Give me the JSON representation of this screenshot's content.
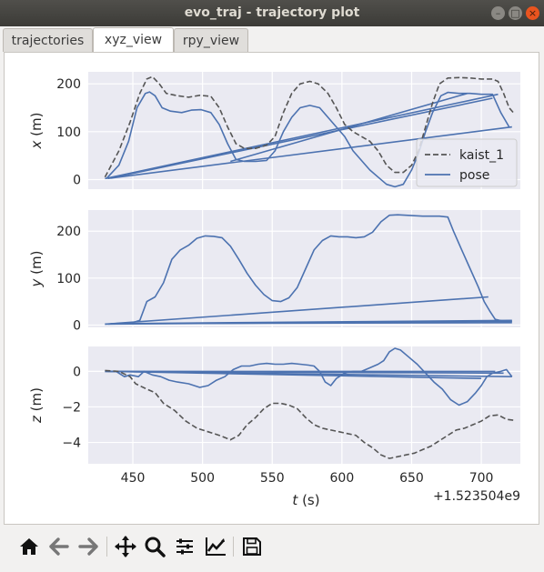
{
  "window": {
    "title": "evo_traj - trajectory plot"
  },
  "tabs": [
    {
      "label": "trajectories",
      "active": false
    },
    {
      "label": "xyz_view",
      "active": true
    },
    {
      "label": "rpy_view",
      "active": false
    }
  ],
  "toolbar": [
    "home-icon",
    "back-arrow-icon",
    "forward-arrow-icon",
    "pan-icon",
    "zoom-icon",
    "configure-subplots-icon",
    "edit-axis-icon",
    "save-icon"
  ],
  "colors": {
    "reference": "#555555",
    "pose": "#4c72b0",
    "axes_bg": "#eaeaf2",
    "grid": "#ffffff"
  },
  "chart_data": {
    "type": "line",
    "x_offset_label": "+1.523504e9",
    "xlabel": "t (s)",
    "xlim": [
      418,
      728
    ],
    "xticks": [
      450,
      500,
      550,
      600,
      650,
      700
    ],
    "legend": {
      "position": "right",
      "entries": [
        "kaist_1",
        "pose"
      ]
    },
    "series": [
      {
        "name": "kaist_1",
        "style": "dashed",
        "color": "#555555"
      },
      {
        "name": "pose",
        "style": "solid",
        "color": "#4c72b0"
      }
    ],
    "subplots": [
      {
        "ylabel": "x (m)",
        "ylim": [
          -20,
          225
        ],
        "yticks": [
          0,
          100,
          200
        ],
        "kaist_1": [
          [
            430,
            5
          ],
          [
            440,
            60
          ],
          [
            448,
            120
          ],
          [
            455,
            180
          ],
          [
            460,
            210
          ],
          [
            464,
            215
          ],
          [
            469,
            200
          ],
          [
            474,
            180
          ],
          [
            482,
            175
          ],
          [
            490,
            172
          ],
          [
            498,
            176
          ],
          [
            506,
            174
          ],
          [
            512,
            150
          ],
          [
            518,
            110
          ],
          [
            524,
            75
          ],
          [
            530,
            65
          ],
          [
            538,
            65
          ],
          [
            546,
            72
          ],
          [
            552,
            90
          ],
          [
            558,
            140
          ],
          [
            564,
            180
          ],
          [
            570,
            200
          ],
          [
            577,
            205
          ],
          [
            583,
            200
          ],
          [
            590,
            180
          ],
          [
            596,
            150
          ],
          [
            602,
            115
          ],
          [
            608,
            100
          ],
          [
            614,
            90
          ],
          [
            620,
            80
          ],
          [
            626,
            60
          ],
          [
            632,
            30
          ],
          [
            638,
            15
          ],
          [
            644,
            15
          ],
          [
            650,
            30
          ],
          [
            655,
            60
          ],
          [
            660,
            110
          ],
          [
            665,
            160
          ],
          [
            670,
            200
          ],
          [
            676,
            212
          ],
          [
            684,
            213
          ],
          [
            692,
            212
          ],
          [
            700,
            210
          ],
          [
            708,
            210
          ],
          [
            712,
            205
          ],
          [
            716,
            180
          ],
          [
            720,
            150
          ],
          [
            723,
            140
          ]
        ],
        "pose_segments": [
          [
            [
              431,
              2
            ],
            [
              440,
              30
            ],
            [
              447,
              80
            ],
            [
              453,
              150
            ],
            [
              459,
              180
            ],
            [
              462,
              183
            ],
            [
              466,
              175
            ],
            [
              471,
              150
            ],
            [
              477,
              143
            ],
            [
              485,
              140
            ],
            [
              492,
              145
            ],
            [
              499,
              146
            ],
            [
              506,
              140
            ],
            [
              512,
              115
            ],
            [
              518,
              75
            ],
            [
              524,
              42
            ],
            [
              530,
              38
            ],
            [
              538,
              38
            ],
            [
              546,
              40
            ],
            [
              552,
              60
            ],
            [
              558,
              100
            ],
            [
              564,
              130
            ],
            [
              570,
              150
            ],
            [
              577,
              155
            ],
            [
              584,
              150
            ],
            [
              590,
              130
            ],
            [
              596,
              110
            ],
            [
              602,
              90
            ],
            [
              608,
              60
            ],
            [
              614,
              40
            ],
            [
              620,
              20
            ],
            [
              626,
              5
            ],
            [
              632,
              -10
            ],
            [
              638,
              -15
            ],
            [
              644,
              -10
            ],
            [
              650,
              20
            ],
            [
              655,
              55
            ],
            [
              660,
              100
            ],
            [
              665,
              140
            ],
            [
              671,
              175
            ],
            [
              676,
              182
            ],
            [
              684,
              180
            ],
            [
              692,
              180
            ],
            [
              700,
              178
            ],
            [
              708,
              178
            ],
            [
              714,
              140
            ],
            [
              720,
              110
            ]
          ],
          [
            [
              430,
              2
            ],
            [
              712,
              178
            ]
          ],
          [
            [
              432,
              2
            ],
            [
              708,
              170
            ]
          ],
          [
            [
              434,
              3
            ],
            [
              722,
              110
            ]
          ],
          [
            [
              520,
              38
            ],
            [
              690,
              180
            ]
          ]
        ]
      },
      {
        "ylabel": "y (m)",
        "ylim": [
          -5,
          245
        ],
        "yticks": [
          0,
          100,
          200
        ],
        "kaist_1": [],
        "pose_segments": [
          [
            [
              430,
              2
            ],
            [
              440,
              3
            ],
            [
              450,
              5
            ],
            [
              455,
              10
            ],
            [
              460,
              50
            ],
            [
              466,
              60
            ],
            [
              472,
              90
            ],
            [
              478,
              140
            ],
            [
              484,
              160
            ],
            [
              490,
              170
            ],
            [
              496,
              185
            ],
            [
              502,
              190
            ],
            [
              508,
              189
            ],
            [
              514,
              186
            ],
            [
              520,
              168
            ],
            [
              526,
              140
            ],
            [
              532,
              110
            ],
            [
              538,
              85
            ],
            [
              544,
              65
            ],
            [
              550,
              52
            ],
            [
              556,
              50
            ],
            [
              562,
              58
            ],
            [
              568,
              80
            ],
            [
              574,
              120
            ],
            [
              580,
              160
            ],
            [
              586,
              180
            ],
            [
              592,
              190
            ],
            [
              598,
              188
            ],
            [
              604,
              188
            ],
            [
              610,
              186
            ],
            [
              616,
              188
            ],
            [
              622,
              198
            ],
            [
              628,
              220
            ],
            [
              634,
              234
            ],
            [
              640,
              235
            ],
            [
              646,
              234
            ],
            [
              652,
              233
            ],
            [
              658,
              232
            ],
            [
              664,
              232
            ],
            [
              670,
              232
            ],
            [
              676,
              230
            ],
            [
              680,
              200
            ],
            [
              686,
              160
            ],
            [
              692,
              120
            ],
            [
              698,
              80
            ],
            [
              702,
              50
            ],
            [
              706,
              30
            ],
            [
              710,
              12
            ],
            [
              716,
              8
            ],
            [
              722,
              8
            ]
          ],
          [
            [
              430,
              2
            ],
            [
              705,
              60
            ]
          ],
          [
            [
              432,
              2
            ],
            [
              722,
              8
            ]
          ],
          [
            [
              434,
              3
            ],
            [
              722,
              5
            ]
          ],
          [
            [
              436,
              3
            ],
            [
              722,
              10
            ]
          ]
        ]
      },
      {
        "ylabel": "z (m)",
        "ylim": [
          -5.2,
          1.4
        ],
        "yticks": [
          0,
          -2,
          -4
        ],
        "kaist_1": [
          [
            430,
            0.05
          ],
          [
            440,
            0
          ],
          [
            448,
            -0.3
          ],
          [
            452,
            -0.7
          ],
          [
            460,
            -1
          ],
          [
            466,
            -1.2
          ],
          [
            472,
            -1.8
          ],
          [
            480,
            -2.2
          ],
          [
            488,
            -2.8
          ],
          [
            496,
            -3.2
          ],
          [
            504,
            -3.4
          ],
          [
            512,
            -3.6
          ],
          [
            520,
            -3.85
          ],
          [
            526,
            -3.6
          ],
          [
            532,
            -3
          ],
          [
            538,
            -2.6
          ],
          [
            544,
            -2.1
          ],
          [
            550,
            -1.8
          ],
          [
            556,
            -1.8
          ],
          [
            562,
            -1.9
          ],
          [
            568,
            -2.1
          ],
          [
            574,
            -2.6
          ],
          [
            580,
            -3
          ],
          [
            586,
            -3.2
          ],
          [
            592,
            -3.3
          ],
          [
            598,
            -3.4
          ],
          [
            604,
            -3.5
          ],
          [
            610,
            -3.6
          ],
          [
            616,
            -4
          ],
          [
            622,
            -4.3
          ],
          [
            628,
            -4.7
          ],
          [
            634,
            -4.9
          ],
          [
            640,
            -4.8
          ],
          [
            646,
            -4.7
          ],
          [
            652,
            -4.6
          ],
          [
            658,
            -4.4
          ],
          [
            664,
            -4.2
          ],
          [
            670,
            -3.9
          ],
          [
            676,
            -3.6
          ],
          [
            682,
            -3.3
          ],
          [
            688,
            -3.2
          ],
          [
            694,
            -3
          ],
          [
            700,
            -2.8
          ],
          [
            706,
            -2.5
          ],
          [
            712,
            -2.45
          ],
          [
            718,
            -2.7
          ],
          [
            723,
            -2.75
          ]
        ],
        "pose_segments": [
          [
            [
              430,
              0
            ],
            [
              438,
              0
            ],
            [
              444,
              -0.3
            ],
            [
              448,
              -0.2
            ],
            [
              454,
              -0.3
            ],
            [
              458,
              0
            ],
            [
              464,
              -0.2
            ],
            [
              470,
              -0.3
            ],
            [
              476,
              -0.5
            ],
            [
              482,
              -0.6
            ],
            [
              490,
              -0.7
            ],
            [
              498,
              -0.9
            ],
            [
              504,
              -0.8
            ],
            [
              510,
              -0.5
            ],
            [
              516,
              -0.3
            ],
            [
              522,
              0.1
            ],
            [
              528,
              0.3
            ],
            [
              534,
              0.3
            ],
            [
              540,
              0.4
            ],
            [
              546,
              0.45
            ],
            [
              552,
              0.4
            ],
            [
              558,
              0.4
            ],
            [
              564,
              0.45
            ],
            [
              570,
              0.4
            ],
            [
              576,
              0.35
            ],
            [
              580,
              0.3
            ],
            [
              584,
              0
            ],
            [
              588,
              -0.6
            ],
            [
              592,
              -0.8
            ],
            [
              596,
              -0.4
            ],
            [
              602,
              -0.1
            ],
            [
              608,
              0
            ],
            [
              614,
              0
            ],
            [
              620,
              0.2
            ],
            [
              626,
              0.4
            ],
            [
              630,
              0.6
            ],
            [
              634,
              1.1
            ],
            [
              638,
              1.3
            ],
            [
              642,
              1.2
            ],
            [
              648,
              0.8
            ],
            [
              654,
              0.4
            ],
            [
              660,
              -0.1
            ],
            [
              666,
              -0.6
            ],
            [
              672,
              -1
            ],
            [
              678,
              -1.6
            ],
            [
              684,
              -1.9
            ],
            [
              690,
              -1.7
            ],
            [
              696,
              -1.2
            ],
            [
              700,
              -0.8
            ],
            [
              704,
              -0.3
            ],
            [
              708,
              -0.1
            ],
            [
              714,
              0
            ],
            [
              718,
              0.1
            ],
            [
              722,
              -0.3
            ]
          ],
          [
            [
              430,
              0
            ],
            [
              722,
              -0.3
            ]
          ],
          [
            [
              432,
              0
            ],
            [
              710,
              0
            ]
          ],
          [
            [
              434,
              0
            ],
            [
              716,
              -0.1
            ]
          ],
          [
            [
              436,
              0
            ],
            [
              700,
              -0.4
            ]
          ]
        ]
      }
    ]
  }
}
